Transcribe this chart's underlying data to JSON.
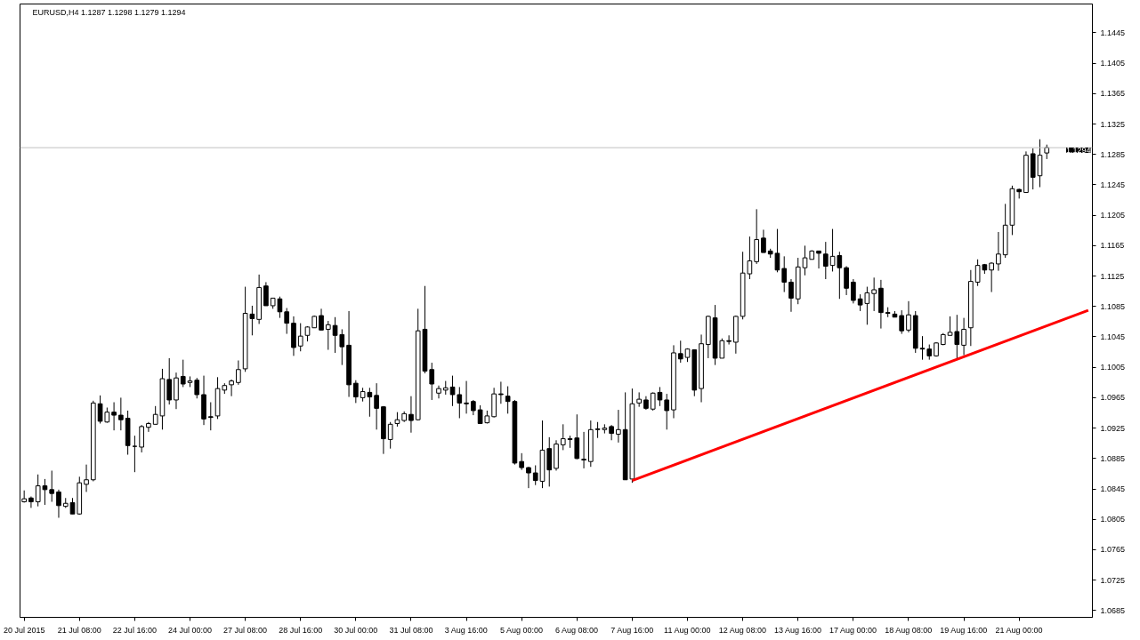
{
  "chart_data": {
    "type": "candlestick",
    "title": "EURUSD,H4  1.1287 1.1298 1.1279 1.1294",
    "categories": [
      "20 Jul 2015",
      null,
      null,
      null,
      null,
      null,
      null,
      null,
      "21 Jul 08:00",
      null,
      null,
      null,
      null,
      null,
      null,
      null,
      "22 Jul 16:00",
      null,
      null,
      null,
      null,
      null,
      null,
      null,
      "24 Jul 00:00",
      null,
      null,
      null,
      null,
      null,
      null,
      null,
      "27 Jul 08:00",
      null,
      null,
      null,
      null,
      null,
      null,
      null,
      "28 Jul 16:00",
      null,
      null,
      null,
      null,
      null,
      null,
      null,
      "30 Jul 00:00",
      null,
      null,
      null,
      null,
      null,
      null,
      null,
      "31 Jul 08:00",
      null,
      null,
      null,
      null,
      null,
      null,
      null,
      "3 Aug 16:00",
      null,
      null,
      null,
      null,
      null,
      null,
      null,
      "5 Aug 00:00",
      null,
      null,
      null,
      null,
      null,
      null,
      null,
      "6 Aug 08:00",
      null,
      null,
      null,
      null,
      null,
      null,
      null,
      "7 Aug 16:00",
      null,
      null,
      null,
      null,
      null,
      null,
      null,
      "11 Aug 00:00",
      null,
      null,
      null,
      null,
      null,
      null,
      null,
      "12 Aug 08:00",
      null,
      null,
      null,
      null,
      null,
      null,
      null,
      "13 Aug 16:00",
      null,
      null,
      null,
      null,
      null,
      null,
      null,
      "17 Aug 00:00",
      null,
      null,
      null,
      null,
      null,
      null,
      null,
      "18 Aug 08:00",
      null,
      null,
      null,
      null,
      null,
      null,
      null,
      "19 Aug 16:00",
      null,
      null,
      null,
      null,
      null,
      null,
      null,
      "21 Aug 00:00",
      null,
      null,
      null,
      null,
      null,
      null,
      null,
      null,
      null,
      null
    ],
    "ohlc": [
      [
        1.0828,
        1.0843,
        1.0827,
        1.0832
      ],
      [
        1.0833,
        1.0835,
        1.082,
        1.0828
      ],
      [
        1.0828,
        1.0864,
        1.0822,
        1.0849
      ],
      [
        1.0849,
        1.0858,
        1.0824,
        1.0844
      ],
      [
        1.0844,
        1.0869,
        1.0828,
        1.0839
      ],
      [
        1.0841,
        1.0844,
        1.0807,
        1.0823
      ],
      [
        1.0822,
        1.0833,
        1.082,
        1.0826
      ],
      [
        1.0827,
        1.0833,
        1.0812,
        1.0812
      ],
      [
        1.0812,
        1.0861,
        1.0811,
        1.0853
      ],
      [
        1.0851,
        1.0877,
        1.0841,
        1.0857
      ],
      [
        1.0857,
        1.0961,
        1.0855,
        1.0958
      ],
      [
        1.0957,
        1.0968,
        1.0931,
        1.0934
      ],
      [
        1.0933,
        1.0952,
        1.0932,
        1.0946
      ],
      [
        1.0946,
        1.0959,
        1.0922,
        1.0942
      ],
      [
        1.0942,
        1.0965,
        1.0922,
        1.0936
      ],
      [
        1.0938,
        1.0948,
        1.089,
        1.0902
      ],
      [
        1.0901,
        1.0915,
        1.0867,
        1.0901
      ],
      [
        1.09,
        1.0929,
        1.0893,
        1.0927
      ],
      [
        1.0926,
        1.0933,
        1.092,
        1.0931
      ],
      [
        1.093,
        1.0954,
        1.093,
        1.0943
      ],
      [
        1.0941,
        1.1003,
        1.0923,
        1.099
      ],
      [
        1.0989,
        1.1017,
        1.0956,
        1.0962
      ],
      [
        1.0962,
        1.0998,
        1.095,
        1.0991
      ],
      [
        1.0993,
        1.1015,
        1.0979,
        1.0983
      ],
      [
        1.0985,
        1.0993,
        1.0979,
        1.0987
      ],
      [
        1.0988,
        1.0991,
        1.0964,
        1.0969
      ],
      [
        1.0969,
        1.0994,
        1.0929,
        1.0937
      ],
      [
        1.094,
        1.0959,
        1.0922,
        1.0939
      ],
      [
        1.0941,
        1.0992,
        1.0937,
        1.0977
      ],
      [
        1.0975,
        1.0984,
        1.097,
        1.0981
      ],
      [
        1.0982,
        1.0989,
        1.0967,
        1.0987
      ],
      [
        1.0985,
        1.1014,
        1.0982,
        1.1002
      ],
      [
        1.1003,
        1.1111,
        1.0999,
        1.1076
      ],
      [
        1.1075,
        1.1086,
        1.1047,
        1.1069
      ],
      [
        1.1068,
        1.1127,
        1.1062,
        1.111
      ],
      [
        1.1112,
        1.1117,
        1.1086,
        1.1086
      ],
      [
        1.1086,
        1.1096,
        1.1082,
        1.1096
      ],
      [
        1.1095,
        1.1098,
        1.107,
        1.1078
      ],
      [
        1.1078,
        1.1083,
        1.1049,
        1.1063
      ],
      [
        1.1063,
        1.1072,
        1.102,
        1.1031
      ],
      [
        1.1033,
        1.1063,
        1.1026,
        1.1046
      ],
      [
        1.1047,
        1.1059,
        1.1039,
        1.1058
      ],
      [
        1.1057,
        1.1073,
        1.1057,
        1.1072
      ],
      [
        1.1073,
        1.1082,
        1.1054,
        1.1054
      ],
      [
        1.1055,
        1.1066,
        1.1028,
        1.1061
      ],
      [
        1.106,
        1.1071,
        1.1024,
        1.1047
      ],
      [
        1.1048,
        1.1055,
        1.1008,
        1.1032
      ],
      [
        1.1034,
        1.1079,
        1.0966,
        1.0982
      ],
      [
        1.0984,
        1.0988,
        1.0958,
        1.0966
      ],
      [
        1.0965,
        1.0978,
        1.096,
        1.0973
      ],
      [
        1.0972,
        1.0978,
        1.094,
        1.0966
      ],
      [
        1.0968,
        1.0984,
        1.0923,
        1.0951
      ],
      [
        1.0953,
        1.0954,
        1.0891,
        1.0911
      ],
      [
        1.091,
        1.0933,
        1.0898,
        1.093
      ],
      [
        1.0931,
        1.0946,
        1.0927,
        1.0936
      ],
      [
        1.0935,
        1.0947,
        1.0933,
        1.0944
      ],
      [
        1.0943,
        1.0967,
        1.0919,
        1.0935
      ],
      [
        1.0936,
        1.1082,
        1.0935,
        1.1053
      ],
      [
        1.1055,
        1.1112,
        1.0997,
        1.1
      ],
      [
        1.1002,
        1.1011,
        1.0962,
        1.0983
      ],
      [
        1.0971,
        1.0981,
        1.0964,
        1.0977
      ],
      [
        1.0975,
        1.0987,
        1.0969,
        1.0978
      ],
      [
        1.0979,
        1.0994,
        1.0954,
        1.0969
      ],
      [
        1.0969,
        1.0979,
        1.0938,
        1.0958
      ],
      [
        1.0958,
        1.0987,
        1.0944,
        1.0957
      ],
      [
        1.096,
        1.0962,
        1.0942,
        1.0948
      ],
      [
        1.0949,
        1.0955,
        1.0931,
        1.0931
      ],
      [
        1.0932,
        1.0948,
        1.0931,
        1.0941
      ],
      [
        1.094,
        1.0978,
        1.0939,
        1.097
      ],
      [
        1.097,
        1.0986,
        1.0957,
        1.0969
      ],
      [
        1.0967,
        1.098,
        1.0944,
        1.096
      ],
      [
        1.096,
        1.0962,
        1.0877,
        1.0879
      ],
      [
        1.0881,
        1.0892,
        1.087,
        1.0873
      ],
      [
        1.0873,
        1.0874,
        1.0846,
        1.0866
      ],
      [
        1.0866,
        1.0876,
        1.085,
        1.0856
      ],
      [
        1.0855,
        1.0935,
        1.0846,
        1.0896
      ],
      [
        1.0898,
        1.0913,
        1.0848,
        1.087
      ],
      [
        1.0872,
        1.0909,
        1.0869,
        1.0904
      ],
      [
        1.0903,
        1.093,
        1.0896,
        1.0911
      ],
      [
        1.0911,
        1.0915,
        1.0899,
        1.091
      ],
      [
        1.0912,
        1.0943,
        1.0884,
        1.0885
      ],
      [
        1.0884,
        1.092,
        1.0872,
        1.0883
      ],
      [
        1.0881,
        1.0935,
        1.0874,
        1.0923
      ],
      [
        1.0923,
        1.0933,
        1.0912,
        1.0924
      ],
      [
        1.0923,
        1.093,
        1.0918,
        1.0925
      ],
      [
        1.0927,
        1.0929,
        1.0909,
        1.0918
      ],
      [
        1.0917,
        1.0949,
        1.0906,
        1.0923
      ],
      [
        1.0923,
        1.0972,
        1.0857,
        1.0857
      ],
      [
        1.0858,
        1.0977,
        1.0853,
        1.0957
      ],
      [
        1.0958,
        1.0972,
        1.0953,
        1.0963
      ],
      [
        1.0962,
        1.0967,
        1.0949,
        1.0951
      ],
      [
        1.095,
        1.0972,
        1.0948,
        1.0971
      ],
      [
        1.0972,
        1.0979,
        1.0954,
        1.0962
      ],
      [
        1.0962,
        1.097,
        1.0923,
        1.0948
      ],
      [
        1.0949,
        1.1034,
        1.0938,
        1.1024
      ],
      [
        1.1023,
        1.104,
        1.1011,
        1.1016
      ],
      [
        1.1018,
        1.103,
        1.1012,
        1.1029
      ],
      [
        1.1028,
        1.1028,
        1.0967,
        1.0975
      ],
      [
        1.0977,
        1.1048,
        1.0959,
        1.1036
      ],
      [
        1.1035,
        1.1073,
        1.1017,
        1.1072
      ],
      [
        1.107,
        1.1087,
        1.1008,
        1.1017
      ],
      [
        1.1017,
        1.1043,
        1.1017,
        1.104
      ],
      [
        1.104,
        1.1047,
        1.1035,
        1.1039
      ],
      [
        1.1038,
        1.1073,
        1.1023,
        1.1072
      ],
      [
        1.1072,
        1.1157,
        1.1068,
        1.1129
      ],
      [
        1.1128,
        1.1177,
        1.1121,
        1.1145
      ],
      [
        1.1144,
        1.1213,
        1.1141,
        1.1173
      ],
      [
        1.1175,
        1.1186,
        1.1156,
        1.1156
      ],
      [
        1.1158,
        1.1161,
        1.1149,
        1.1154
      ],
      [
        1.1155,
        1.1187,
        1.113,
        1.1133
      ],
      [
        1.1135,
        1.1151,
        1.1104,
        1.1117
      ],
      [
        1.1117,
        1.1121,
        1.1078,
        1.1096
      ],
      [
        1.1095,
        1.1149,
        1.1088,
        1.1137
      ],
      [
        1.1136,
        1.1165,
        1.1126,
        1.1149
      ],
      [
        1.1147,
        1.1159,
        1.1147,
        1.1158
      ],
      [
        1.1158,
        1.1158,
        1.1135,
        1.1155
      ],
      [
        1.1154,
        1.117,
        1.1121,
        1.1138
      ],
      [
        1.1139,
        1.1187,
        1.1131,
        1.1151
      ],
      [
        1.1152,
        1.1157,
        1.1095,
        1.1136
      ],
      [
        1.1136,
        1.1138,
        1.11,
        1.1109
      ],
      [
        1.1117,
        1.1121,
        1.1089,
        1.1093
      ],
      [
        1.1095,
        1.1101,
        1.1079,
        1.1087
      ],
      [
        1.1089,
        1.1111,
        1.1061,
        1.1103
      ],
      [
        1.1102,
        1.1123,
        1.1079,
        1.1107
      ],
      [
        1.1109,
        1.112,
        1.1056,
        1.1077
      ],
      [
        1.1077,
        1.1084,
        1.1071,
        1.1076
      ],
      [
        1.1075,
        1.1079,
        1.1071,
        1.1071
      ],
      [
        1.1073,
        1.108,
        1.1049,
        1.1053
      ],
      [
        1.1054,
        1.1092,
        1.1051,
        1.1074
      ],
      [
        1.1073,
        1.1079,
        1.1024,
        1.103
      ],
      [
        1.103,
        1.1046,
        1.1015,
        1.1029
      ],
      [
        1.1029,
        1.1035,
        1.1015,
        1.102
      ],
      [
        1.102,
        1.1038,
        1.1019,
        1.1037
      ],
      [
        1.1035,
        1.105,
        1.1034,
        1.1048
      ],
      [
        1.1047,
        1.1072,
        1.1047,
        1.1051
      ],
      [
        1.1052,
        1.1074,
        1.1016,
        1.1035
      ],
      [
        1.1034,
        1.107,
        1.1021,
        1.1055
      ],
      [
        1.1057,
        1.1133,
        1.1033,
        1.1118
      ],
      [
        1.1117,
        1.1147,
        1.1112,
        1.1139
      ],
      [
        1.114,
        1.1141,
        1.1128,
        1.1133
      ],
      [
        1.1133,
        1.1143,
        1.1104,
        1.1142
      ],
      [
        1.1141,
        1.1183,
        1.1132,
        1.1154
      ],
      [
        1.1153,
        1.122,
        1.1149,
        1.1192
      ],
      [
        1.1192,
        1.1244,
        1.1179,
        1.124
      ],
      [
        1.1239,
        1.124,
        1.1227,
        1.1236
      ],
      [
        1.1235,
        1.1289,
        1.1235,
        1.1284
      ],
      [
        1.1286,
        1.1293,
        1.1239,
        1.1255
      ],
      [
        1.1257,
        1.1305,
        1.1242,
        1.1284
      ],
      [
        1.1287,
        1.1298,
        1.1279,
        1.1294
      ],
      null,
      null,
      null,
      null,
      null,
      null
    ],
    "series": [
      {
        "type": "line",
        "color": "#ff0000",
        "values": [
          null,
          null,
          null,
          null,
          null,
          null,
          null,
          null,
          null,
          null,
          null,
          null,
          null,
          null,
          null,
          null,
          null,
          null,
          null,
          null,
          null,
          null,
          null,
          null,
          null,
          null,
          null,
          null,
          null,
          null,
          null,
          null,
          null,
          null,
          null,
          null,
          null,
          null,
          null,
          null,
          null,
          null,
          null,
          null,
          null,
          null,
          null,
          null,
          null,
          null,
          null,
          null,
          null,
          null,
          null,
          null,
          null,
          null,
          null,
          null,
          null,
          null,
          null,
          null,
          null,
          null,
          null,
          null,
          null,
          null,
          null,
          null,
          null,
          null,
          null,
          null,
          null,
          null,
          null,
          null,
          null,
          null,
          null,
          null,
          null,
          null,
          null,
          null,
          1.0856,
          null,
          null,
          null,
          null,
          null,
          null,
          null,
          null,
          null,
          null,
          null,
          null,
          null,
          null,
          null,
          null,
          null,
          null,
          null,
          null,
          null,
          null,
          null,
          null,
          null,
          null,
          null,
          null,
          null,
          null,
          null,
          null,
          null,
          null,
          null,
          null,
          null,
          null,
          null,
          null,
          null,
          null,
          null,
          null,
          null,
          null,
          null,
          null,
          null,
          null,
          null,
          null,
          null,
          null,
          null,
          null,
          null,
          null,
          null,
          null,
          null,
          null,
          null,
          null,
          null,
          1.108
        ]
      }
    ],
    "ylim": [
      1.0676,
      1.1483
    ],
    "yticks": [
      1.0685,
      1.0725,
      1.0765,
      1.0805,
      1.0845,
      1.0885,
      1.0925,
      1.0965,
      1.1005,
      1.1045,
      1.1085,
      1.1125,
      1.1165,
      1.1205,
      1.1245,
      1.1285,
      1.1325,
      1.1365,
      1.1405,
      1.1445
    ],
    "ref_lines": [
      {
        "axis": "y",
        "value": 1.1294,
        "label": "1.1294",
        "color": "#c0c0c0"
      }
    ]
  }
}
